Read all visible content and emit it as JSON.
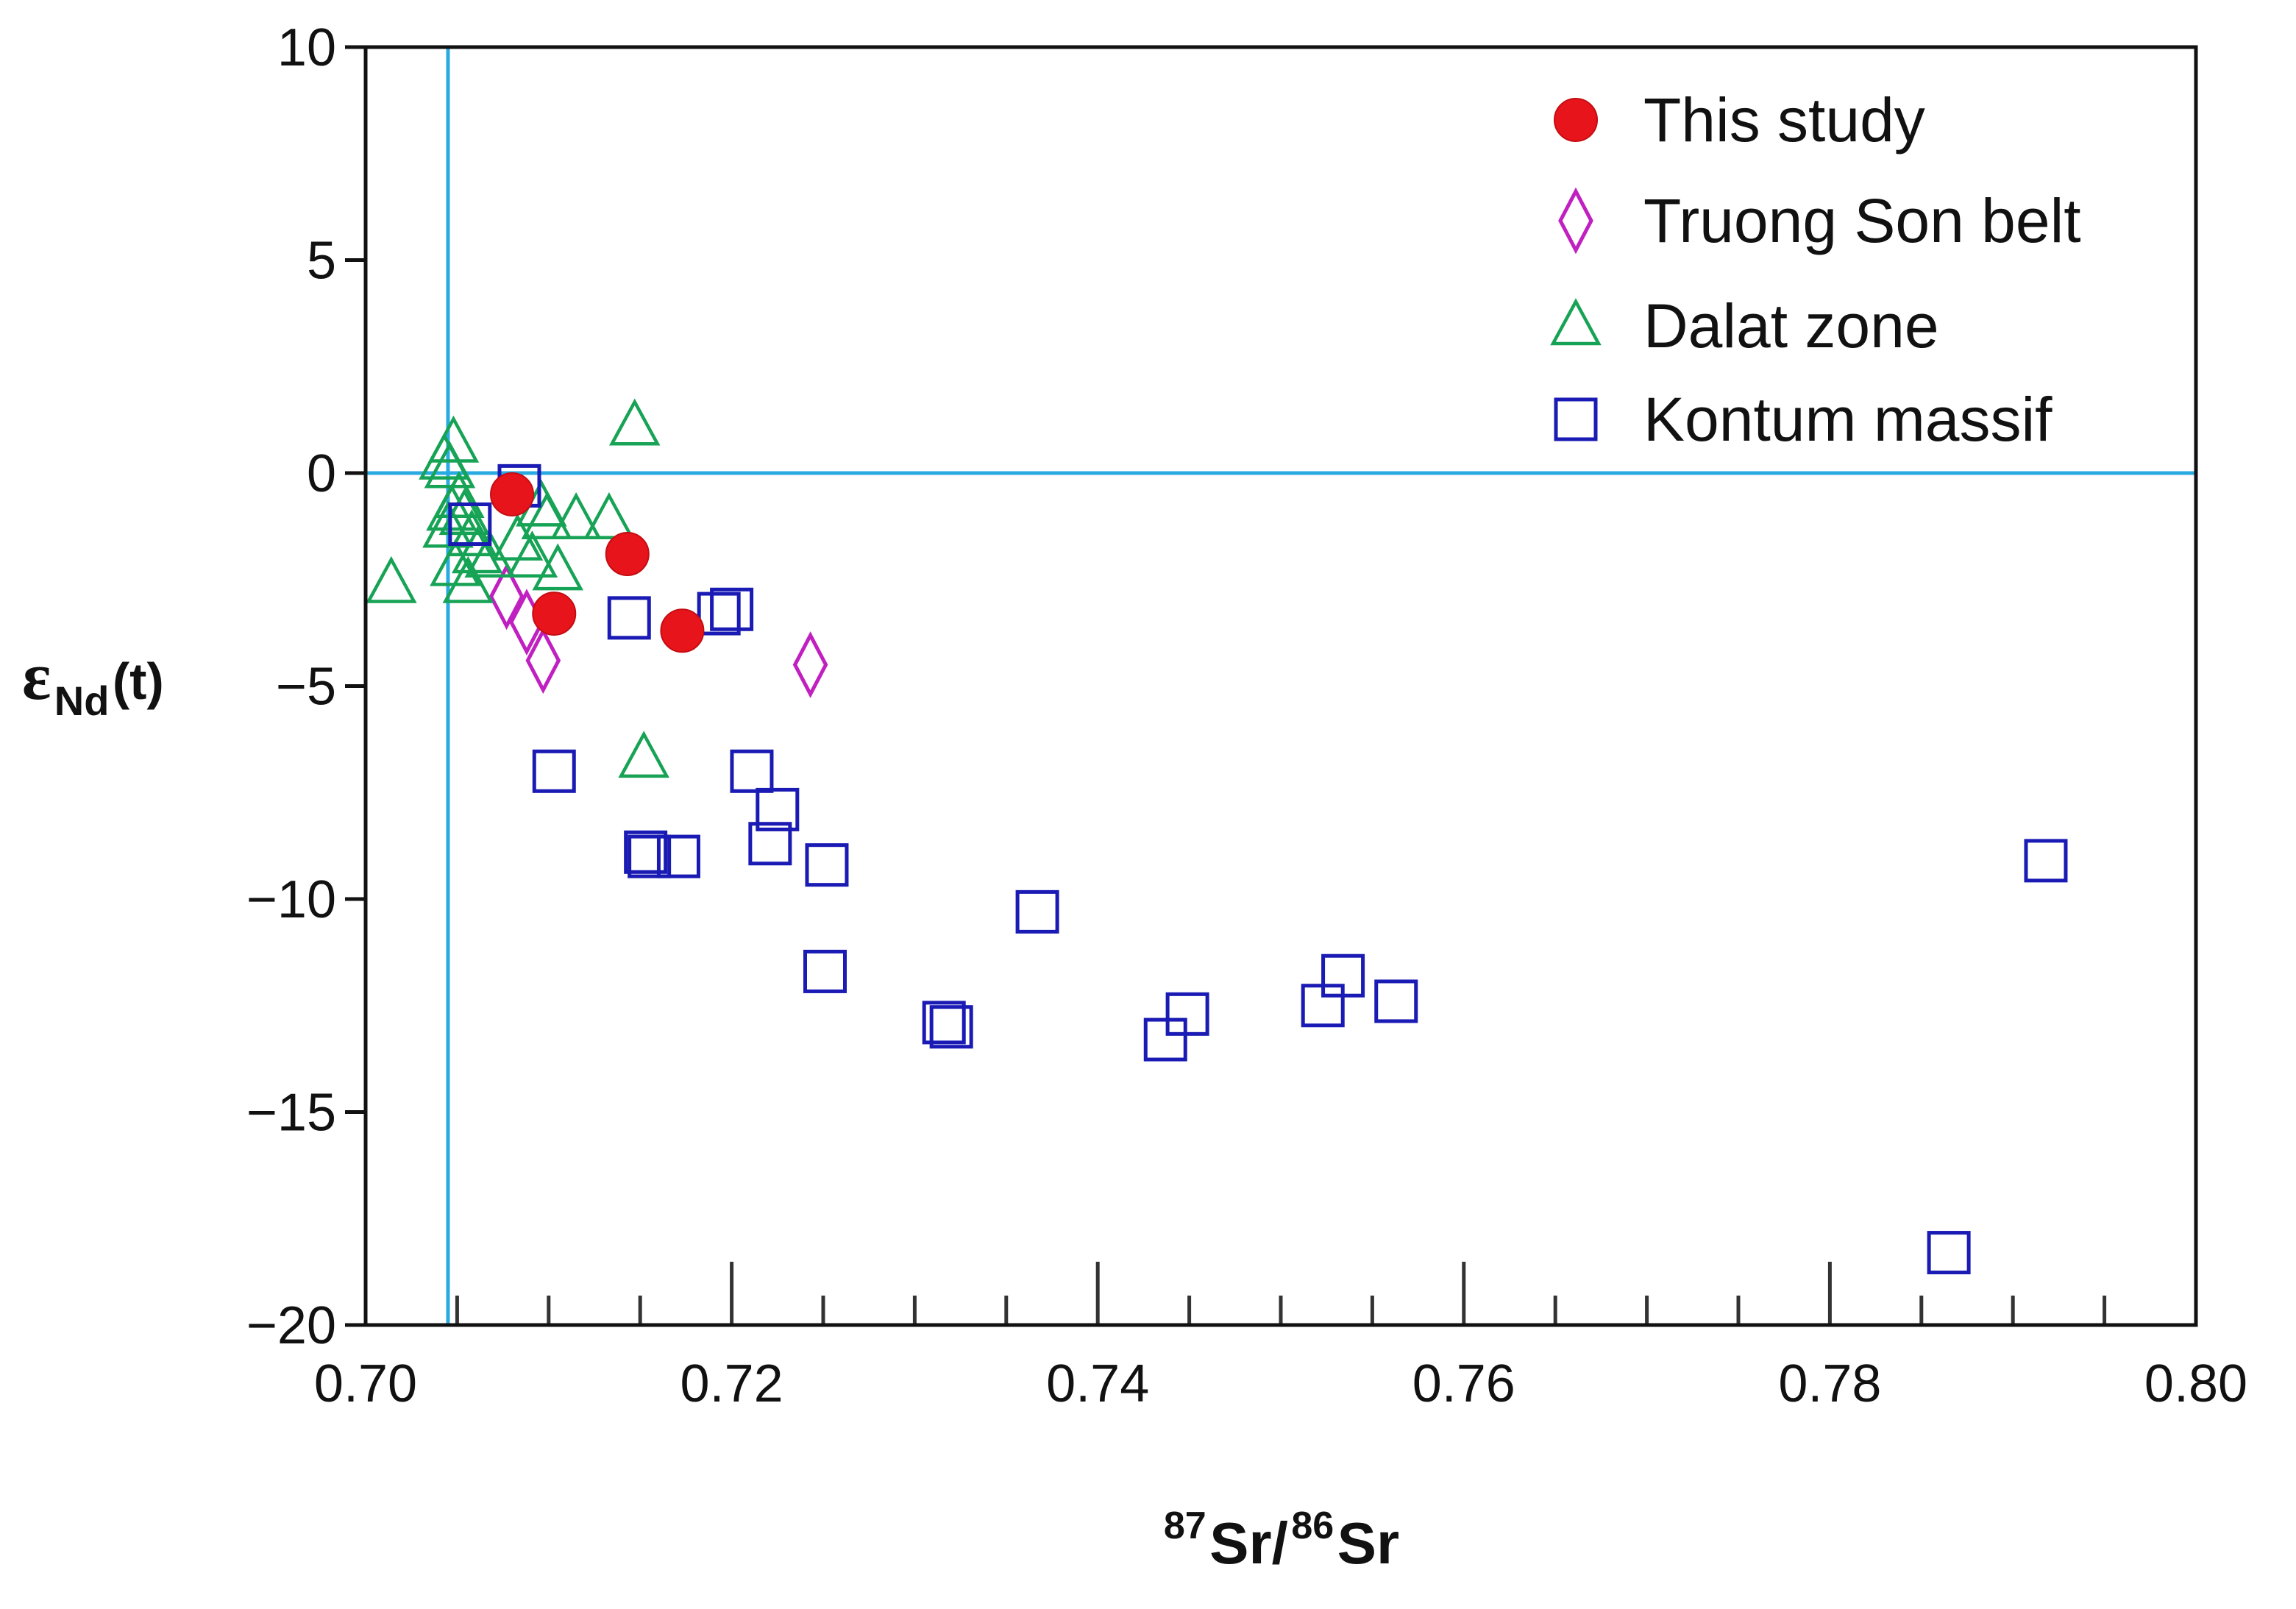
{
  "chart_data": {
    "type": "scatter",
    "title": "",
    "xlabel": {
      "sup1": "87",
      "base1": "Sr/",
      "sup2": "86",
      "base2": "Sr"
    },
    "ylabel": {
      "epsilon": "ε",
      "sub": "Nd",
      "suffix": "(t)"
    },
    "xlim": [
      0.7,
      0.8
    ],
    "ylim": [
      -20,
      10
    ],
    "x_ticks": [
      0.7,
      0.72,
      0.74,
      0.76,
      0.78,
      0.8
    ],
    "x_tick_labels": [
      "0.70",
      "0.72",
      "0.74",
      "0.76",
      "0.78",
      "0.80"
    ],
    "y_ticks": [
      10,
      5,
      0,
      -5,
      -10,
      -15,
      -20
    ],
    "y_tick_labels": [
      "10",
      "5",
      "0",
      "−5",
      "−10",
      "−15",
      "−20"
    ],
    "x_minor_step": 0.005,
    "reference_lines": {
      "vertical_x": 0.7045,
      "horizontal_y": 0,
      "color": "#29abe2"
    },
    "legend_position": "top-right",
    "series": [
      {
        "name": "This study",
        "marker": "circle-filled",
        "color": "#e8141b",
        "points": [
          [
            0.708,
            -0.5
          ],
          [
            0.7103,
            -3.3
          ],
          [
            0.7143,
            -1.9
          ],
          [
            0.7173,
            -3.7
          ]
        ]
      },
      {
        "name": "Truong Son belt",
        "marker": "diamond-open",
        "color": "#c020c0",
        "points": [
          [
            0.7077,
            -2.9
          ],
          [
            0.7088,
            -3.5
          ],
          [
            0.7097,
            -4.4
          ],
          [
            0.7243,
            -4.5
          ]
        ]
      },
      {
        "name": "Dalat zone",
        "marker": "triangle-open",
        "color": "#17a355",
        "points": [
          [
            0.7014,
            -2.6
          ],
          [
            0.7043,
            0.3
          ],
          [
            0.7048,
            0.7
          ],
          [
            0.7046,
            0.1
          ],
          [
            0.7051,
            -0.6
          ],
          [
            0.7047,
            -0.9
          ],
          [
            0.7045,
            -1.3
          ],
          [
            0.7054,
            -1.0
          ],
          [
            0.7058,
            -1.5
          ],
          [
            0.7049,
            -2.2
          ],
          [
            0.7061,
            -1.9
          ],
          [
            0.7056,
            -2.6
          ],
          [
            0.7068,
            -2.0
          ],
          [
            0.7083,
            -1.6
          ],
          [
            0.7091,
            -2.0
          ],
          [
            0.7096,
            -0.8
          ],
          [
            0.7099,
            -1.1
          ],
          [
            0.7105,
            -2.3
          ],
          [
            0.7115,
            -1.1
          ],
          [
            0.7133,
            -1.1
          ],
          [
            0.7147,
            1.1
          ],
          [
            0.7152,
            -6.7
          ]
        ]
      },
      {
        "name": "Kontum massif",
        "marker": "square-open",
        "color": "#1a1ab4",
        "points": [
          [
            0.7084,
            -0.3
          ],
          [
            0.7057,
            -1.2
          ],
          [
            0.7103,
            -7.0
          ],
          [
            0.7144,
            -3.4
          ],
          [
            0.7193,
            -3.3
          ],
          [
            0.72,
            -3.2
          ],
          [
            0.7153,
            -8.9
          ],
          [
            0.7155,
            -9.0
          ],
          [
            0.7171,
            -9.0
          ],
          [
            0.7211,
            -7.0
          ],
          [
            0.7221,
            -8.7
          ],
          [
            0.7225,
            -7.9
          ],
          [
            0.7252,
            -9.2
          ],
          [
            0.7251,
            -11.7
          ],
          [
            0.7316,
            -12.9
          ],
          [
            0.732,
            -13.0
          ],
          [
            0.7367,
            -10.3
          ],
          [
            0.7437,
            -13.3
          ],
          [
            0.7449,
            -12.7
          ],
          [
            0.7523,
            -12.5
          ],
          [
            0.7534,
            -11.8
          ],
          [
            0.7563,
            -12.4
          ],
          [
            0.7865,
            -18.3
          ],
          [
            0.7918,
            -9.1
          ]
        ]
      }
    ]
  }
}
